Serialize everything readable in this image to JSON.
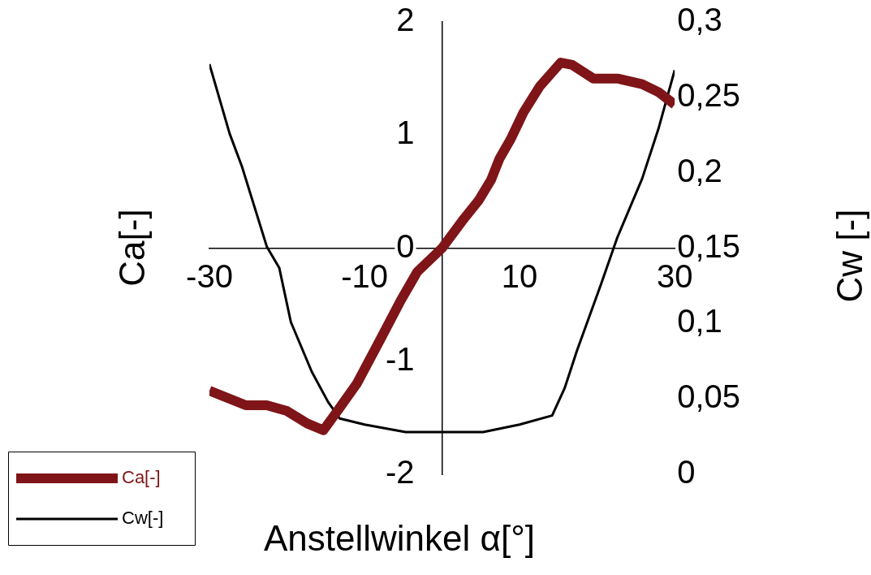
{
  "chart_data": {
    "type": "line",
    "xlabel": "Anstellwinkel α[°]",
    "ylabel": "Ca[-]",
    "y2label": "Cw [-]",
    "xlim": [
      -30,
      30
    ],
    "xticks": [
      -30,
      -10,
      10,
      30
    ],
    "ylim": [
      -2,
      2
    ],
    "yticks": [
      -2,
      -1,
      0,
      1,
      2
    ],
    "y2lim": [
      0,
      0.3
    ],
    "y2ticks": [
      {
        "value": 0,
        "label": "0"
      },
      {
        "value": 0.05,
        "label": "0,05"
      },
      {
        "value": 0.1,
        "label": "0,1"
      },
      {
        "value": 0.15,
        "label": "0,15"
      },
      {
        "value": 0.2,
        "label": "0,2"
      },
      {
        "value": 0.25,
        "label": "0,25"
      },
      {
        "value": 0.3,
        "label": "0,3"
      }
    ],
    "legend": "bottom left",
    "series": [
      {
        "name": "Ca[-]",
        "color": "#7f1518",
        "x": [
          -30,
          -25.3,
          -22.6,
          -20,
          -17.4,
          -15.3,
          -13.7,
          -11,
          -7.9,
          -5.3,
          -3.2,
          0,
          2.6,
          4.7,
          6.3,
          7.4,
          8.9,
          10.5,
          12.6,
          15.3,
          16.8,
          19.5,
          22.6,
          25.8,
          27.9,
          30
        ],
        "values": [
          -1.26,
          -1.39,
          -1.39,
          -1.44,
          -1.55,
          -1.61,
          -1.46,
          -1.2,
          -0.8,
          -0.46,
          -0.21,
          0,
          0.24,
          0.42,
          0.6,
          0.79,
          0.97,
          1.2,
          1.43,
          1.64,
          1.62,
          1.5,
          1.5,
          1.45,
          1.38,
          1.27
        ]
      },
      {
        "name": "Cw[-]",
        "color": "#000000",
        "axis": "y2",
        "x": [
          -30,
          -27.4,
          -25.8,
          -22.6,
          -21,
          -19.5,
          -16.8,
          -14.7,
          -13.2,
          -10,
          -4.7,
          5.3,
          10,
          14.2,
          15.8,
          17.4,
          20.5,
          22.6,
          25.8,
          27.9,
          30
        ],
        "values": [
          0.272,
          0.226,
          0.204,
          0.151,
          0.137,
          0.101,
          0.068,
          0.048,
          0.037,
          0.033,
          0.028,
          0.028,
          0.033,
          0.039,
          0.057,
          0.082,
          0.126,
          0.157,
          0.196,
          0.229,
          0.268
        ]
      }
    ]
  }
}
